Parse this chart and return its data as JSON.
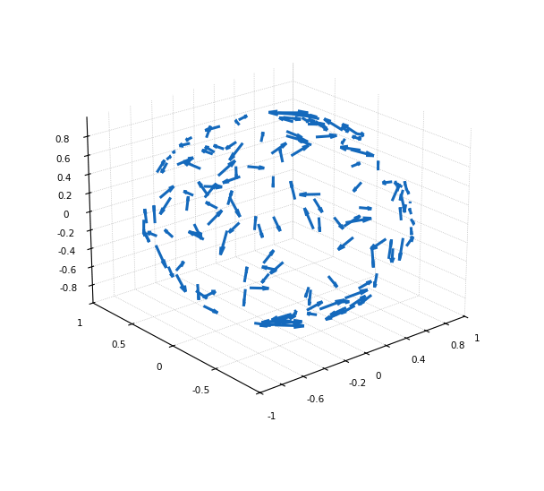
{
  "n_points": 150,
  "arrow_color": "#1469BC",
  "arrow_scale": 0.15,
  "xlim": [
    -1,
    1
  ],
  "ylim": [
    -1,
    1
  ],
  "zlim": [
    -1,
    1
  ],
  "elev": 22,
  "azim": -130,
  "seed": 42,
  "figsize": [
    6.08,
    5.48
  ],
  "dpi": 100,
  "background_color": "white",
  "pane_color": [
    1.0,
    1.0,
    1.0,
    1.0
  ],
  "grid_alpha": 0.4
}
